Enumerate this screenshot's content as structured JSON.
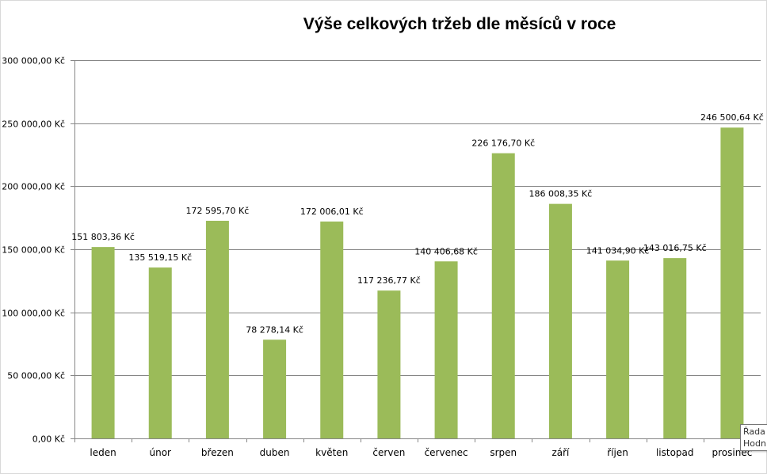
{
  "chart_data": {
    "type": "bar",
    "title": "Výše celkových tržeb dle měsíců v roce",
    "xlabel": "",
    "ylabel": "",
    "ylim": [
      0,
      300000
    ],
    "y_ticks": [
      0,
      50000,
      100000,
      150000,
      200000,
      250000,
      300000
    ],
    "y_tick_labels": [
      "0,00 Kč",
      "50 000,00 Kč",
      "100 000,00 Kč",
      "150 000,00 Kč",
      "200 000,00 Kč",
      "250 000,00 Kč",
      "300 000,00 Kč"
    ],
    "categories": [
      "leden",
      "únor",
      "březen",
      "duben",
      "květen",
      "červen",
      "červenec",
      "srpen",
      "září",
      "říjen",
      "listopad",
      "prosinec"
    ],
    "values": [
      151803.36,
      135519.15,
      172595.7,
      78278.14,
      172006.01,
      117236.77,
      140406.68,
      226176.7,
      186008.35,
      141034.9,
      143016.75,
      246500.64
    ],
    "data_labels": [
      "151 803,36 Kč",
      "135 519,15 Kč",
      "172 595,70 Kč",
      "78 278,14 Kč",
      "172 006,01 Kč",
      "117 236,77 Kč",
      "140 406,68 Kč",
      "226 176,70 Kč",
      "186 008,35 Kč",
      "141 034,90 Kč",
      "143 016,75 Kč",
      "246 500,64 Kč"
    ],
    "grid": true,
    "legend": "none",
    "bar_color": "#9bbb59"
  },
  "tooltip": {
    "line1": "Řada",
    "line2": "Hodn"
  }
}
